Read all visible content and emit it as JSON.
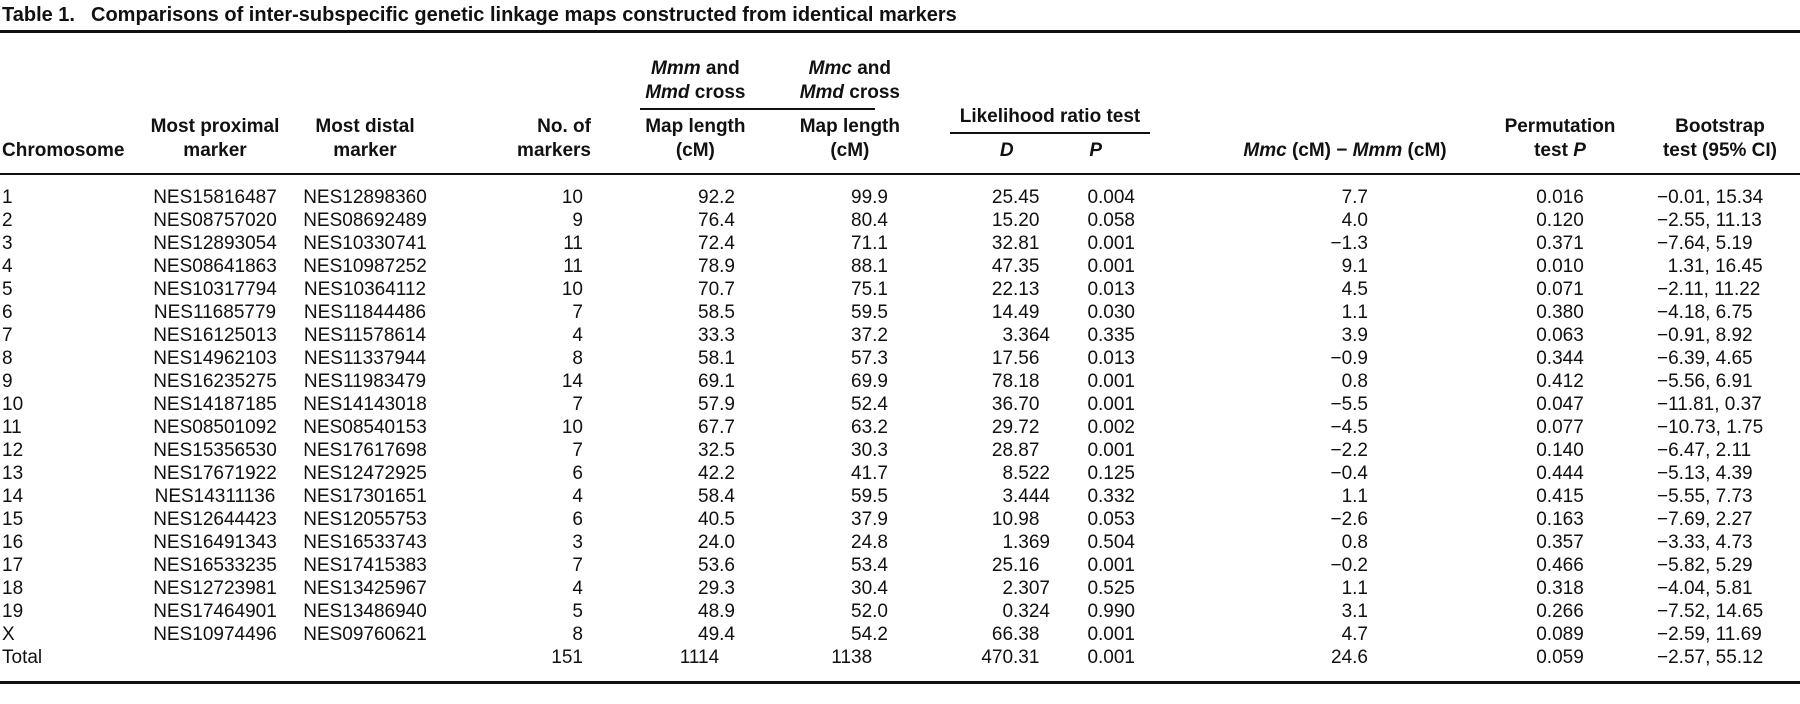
{
  "title": {
    "label": "Table 1.",
    "text": "Comparisons of inter-subspecific genetic linkage maps constructed from identical markers"
  },
  "table": {
    "headers": {
      "chromosome": "Chromosome",
      "proximal_line1": "Most proximal",
      "proximal_line2": "marker",
      "distal_line1": "Most distal",
      "distal_line2": "marker",
      "num_line1": "No. of",
      "num_line2": "markers",
      "cross1_line1": "Mmm and",
      "cross1_line2": "Mmd cross",
      "cross2_line1": "Mmc and",
      "cross2_line2": "Mmd cross",
      "map1_line1": "Map length",
      "map1_line2": "(cM)",
      "map2_line1": "Map length",
      "map2_line2": "(cM)",
      "lrt_title": "Likelihood ratio test",
      "lrt_d": "D",
      "lrt_p": "P",
      "diff": "Mmc (cM) − Mmm (cM)",
      "perm_line1": "Permutation",
      "perm_line2": "test P",
      "boot_line1": "Bootstrap",
      "boot_line2": "test (95% CI)"
    },
    "rows": [
      [
        "1",
        "NES15816487",
        "NES12898360",
        "10",
        "92.2",
        "99.9",
        "25.45",
        "0.004",
        "7.7",
        "0.016",
        "−0.01, 15.34"
      ],
      [
        "2",
        "NES08757020",
        "NES08692489",
        "9",
        "76.4",
        "80.4",
        "15.20",
        "0.058",
        "4.0",
        "0.120",
        "−2.55, 11.13"
      ],
      [
        "3",
        "NES12893054",
        "NES10330741",
        "11",
        "72.4",
        "71.1",
        "32.81",
        "0.001",
        "−1.3",
        "0.371",
        "−7.64, 5.19"
      ],
      [
        "4",
        "NES08641863",
        "NES10987252",
        "11",
        "78.9",
        "88.1",
        "47.35",
        "0.001",
        "9.1",
        "0.010",
        "1.31, 16.45"
      ],
      [
        "5",
        "NES10317794",
        "NES10364112",
        "10",
        "70.7",
        "75.1",
        "22.13",
        "0.013",
        "4.5",
        "0.071",
        "−2.11, 11.22"
      ],
      [
        "6",
        "NES11685779",
        "NES11844486",
        "7",
        "58.5",
        "59.5",
        "14.49",
        "0.030",
        "1.1",
        "0.380",
        "−4.18, 6.75"
      ],
      [
        "7",
        "NES16125013",
        "NES11578614",
        "4",
        "33.3",
        "37.2",
        "3.364",
        "0.335",
        "3.9",
        "0.063",
        "−0.91, 8.92"
      ],
      [
        "8",
        "NES14962103",
        "NES11337944",
        "8",
        "58.1",
        "57.3",
        "17.56",
        "0.013",
        "−0.9",
        "0.344",
        "−6.39, 4.65"
      ],
      [
        "9",
        "NES16235275",
        "NES11983479",
        "14",
        "69.1",
        "69.9",
        "78.18",
        "0.001",
        "0.8",
        "0.412",
        "−5.56, 6.91"
      ],
      [
        "10",
        "NES14187185",
        "NES14143018",
        "7",
        "57.9",
        "52.4",
        "36.70",
        "0.001",
        "−5.5",
        "0.047",
        "−11.81, 0.37"
      ],
      [
        "11",
        "NES08501092",
        "NES08540153",
        "10",
        "67.7",
        "63.2",
        "29.72",
        "0.002",
        "−4.5",
        "0.077",
        "−10.73, 1.75"
      ],
      [
        "12",
        "NES15356530",
        "NES17617698",
        "7",
        "32.5",
        "30.3",
        "28.87",
        "0.001",
        "−2.2",
        "0.140",
        "−6.47, 2.11"
      ],
      [
        "13",
        "NES17671922",
        "NES12472925",
        "6",
        "42.2",
        "41.7",
        "8.522",
        "0.125",
        "−0.4",
        "0.444",
        "−5.13, 4.39"
      ],
      [
        "14",
        "NES14311136",
        "NES17301651",
        "4",
        "58.4",
        "59.5",
        "3.444",
        "0.332",
        "1.1",
        "0.415",
        "−5.55, 7.73"
      ],
      [
        "15",
        "NES12644423",
        "NES12055753",
        "6",
        "40.5",
        "37.9",
        "10.98",
        "0.053",
        "−2.6",
        "0.163",
        "−7.69, 2.27"
      ],
      [
        "16",
        "NES16491343",
        "NES16533743",
        "3",
        "24.0",
        "24.8",
        "1.369",
        "0.504",
        "0.8",
        "0.357",
        "−3.33, 4.73"
      ],
      [
        "17",
        "NES16533235",
        "NES17415383",
        "7",
        "53.6",
        "53.4",
        "25.16",
        "0.001",
        "−0.2",
        "0.466",
        "−5.82, 5.29"
      ],
      [
        "18",
        "NES12723981",
        "NES13425967",
        "4",
        "29.3",
        "30.4",
        "2.307",
        "0.525",
        "1.1",
        "0.318",
        "−4.04, 5.81"
      ],
      [
        "19",
        "NES17464901",
        "NES13486940",
        "5",
        "48.9",
        "52.0",
        "0.324",
        "0.990",
        "3.1",
        "0.266",
        "−7.52, 14.65"
      ],
      [
        "X",
        "NES10974496",
        "NES09760621",
        "8",
        "49.4",
        "54.2",
        "66.38",
        "0.001",
        "4.7",
        "0.089",
        "−2.59, 11.69"
      ],
      [
        "Total",
        "",
        "",
        "151",
        "1114",
        "1138",
        "470.31",
        "0.001",
        "24.6",
        "0.059",
        "−2.57, 55.12"
      ]
    ]
  },
  "colors": {
    "text": "#111111",
    "rule": "#111111",
    "background": "#ffffff"
  }
}
